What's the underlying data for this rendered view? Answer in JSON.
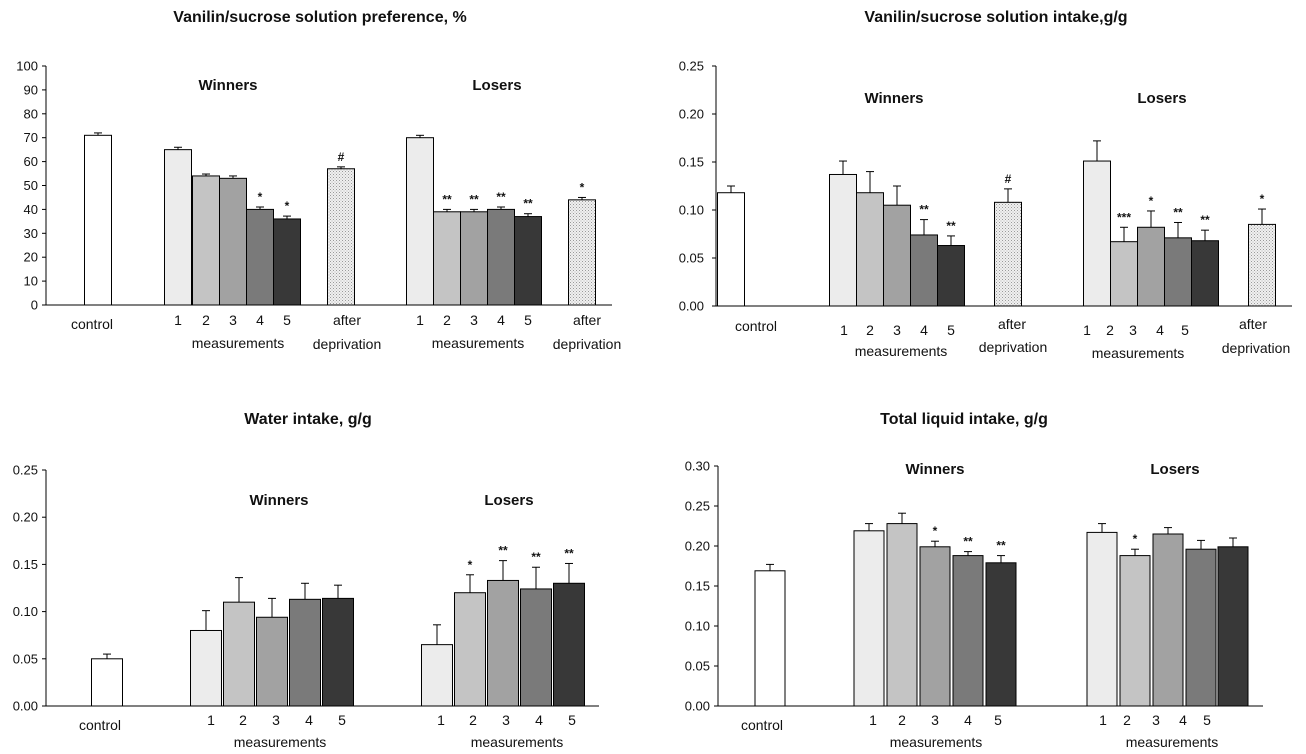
{
  "palette": {
    "control": "#ffffff",
    "m1": "#ececec",
    "m2": "#c4c4c4",
    "m3": "#a2a2a2",
    "m4": "#7a7a7a",
    "m5": "#383838",
    "deprivation": "#f0f0f0",
    "stroke": "#000000"
  },
  "chart_data": [
    {
      "type": "bar",
      "title": "Vanilin/sucrose solution preference, %",
      "ylim": [
        0,
        100
      ],
      "yticks": [
        "0",
        "10",
        "20",
        "30",
        "40",
        "50",
        "60",
        "70",
        "80",
        "90",
        "100"
      ],
      "group_labels": [
        "Winners",
        "Losers"
      ],
      "x_labels": [
        {
          "text": "control"
        },
        {
          "text": "1"
        },
        {
          "text": "2"
        },
        {
          "text": "3"
        },
        {
          "text": "4"
        },
        {
          "text": "5"
        },
        {
          "text": "measurements"
        },
        {
          "text": "after"
        },
        {
          "text": "deprivation"
        },
        {
          "text": "1"
        },
        {
          "text": "2"
        },
        {
          "text": "3"
        },
        {
          "text": "4"
        },
        {
          "text": "5"
        },
        {
          "text": "measurements"
        },
        {
          "text": "after"
        },
        {
          "text": "deprivation"
        }
      ],
      "bars": [
        {
          "group": "control",
          "label": "control",
          "value": 71,
          "error": 1,
          "fill": "control"
        },
        {
          "group": "Winners",
          "label": "1",
          "value": 65,
          "error": 1,
          "fill": "m1"
        },
        {
          "group": "Winners",
          "label": "2",
          "value": 54,
          "error": 0.8,
          "fill": "m2"
        },
        {
          "group": "Winners",
          "label": "3",
          "value": 53,
          "error": 1,
          "fill": "m3"
        },
        {
          "group": "Winners",
          "label": "4",
          "value": 40,
          "error": 1,
          "fill": "m4",
          "annotation": "*"
        },
        {
          "group": "Winners",
          "label": "5",
          "value": 36,
          "error": 1.2,
          "fill": "m5",
          "annotation": "*"
        },
        {
          "group": "Winners",
          "label": "after deprivation",
          "value": 57,
          "error": 0.8,
          "fill": "deprivation",
          "annotation": "#"
        },
        {
          "group": "Losers",
          "label": "1",
          "value": 70,
          "error": 1,
          "fill": "m1"
        },
        {
          "group": "Losers",
          "label": "2",
          "value": 39,
          "error": 1,
          "fill": "m2",
          "annotation": "**"
        },
        {
          "group": "Losers",
          "label": "3",
          "value": 39,
          "error": 1,
          "fill": "m3",
          "annotation": "**"
        },
        {
          "group": "Losers",
          "label": "4",
          "value": 40,
          "error": 1,
          "fill": "m4",
          "annotation": "**"
        },
        {
          "group": "Losers",
          "label": "5",
          "value": 37,
          "error": 1.2,
          "fill": "m5",
          "annotation": "**"
        },
        {
          "group": "Losers",
          "label": "after deprivation",
          "value": 44,
          "error": 1,
          "fill": "deprivation",
          "annotation": "*"
        }
      ]
    },
    {
      "type": "bar",
      "title": "Vanilin/sucrose solution intake,g/g",
      "ylim": [
        0,
        0.25
      ],
      "yticks": [
        "0.00",
        "0.05",
        "0.10",
        "0.15",
        "0.20",
        "0.25"
      ],
      "group_labels": [
        "Winners",
        "Losers"
      ],
      "x_labels": [
        {
          "text": "control"
        },
        {
          "text": "1"
        },
        {
          "text": "2"
        },
        {
          "text": "3"
        },
        {
          "text": "4"
        },
        {
          "text": "5"
        },
        {
          "text": "measurements"
        },
        {
          "text": "after"
        },
        {
          "text": "deprivation"
        },
        {
          "text": "1"
        },
        {
          "text": "2"
        },
        {
          "text": "3"
        },
        {
          "text": "4"
        },
        {
          "text": "5"
        },
        {
          "text": "measurements"
        },
        {
          "text": "after"
        },
        {
          "text": "deprivation"
        }
      ],
      "bars": [
        {
          "group": "control",
          "label": "control",
          "value": 0.118,
          "error": 0.007,
          "fill": "control"
        },
        {
          "group": "Winners",
          "label": "1",
          "value": 0.137,
          "error": 0.014,
          "fill": "m1"
        },
        {
          "group": "Winners",
          "label": "2",
          "value": 0.118,
          "error": 0.022,
          "fill": "m2"
        },
        {
          "group": "Winners",
          "label": "3",
          "value": 0.105,
          "error": 0.02,
          "fill": "m3"
        },
        {
          "group": "Winners",
          "label": "4",
          "value": 0.074,
          "error": 0.016,
          "fill": "m4",
          "annotation": "**"
        },
        {
          "group": "Winners",
          "label": "5",
          "value": 0.063,
          "error": 0.01,
          "fill": "m5",
          "annotation": "**"
        },
        {
          "group": "Winners",
          "label": "after deprivation",
          "value": 0.108,
          "error": 0.014,
          "fill": "deprivation",
          "annotation": "#"
        },
        {
          "group": "Losers",
          "label": "1",
          "value": 0.151,
          "error": 0.021,
          "fill": "m1"
        },
        {
          "group": "Losers",
          "label": "2",
          "value": 0.067,
          "error": 0.015,
          "fill": "m2",
          "annotation": "***"
        },
        {
          "group": "Losers",
          "label": "3",
          "value": 0.082,
          "error": 0.017,
          "fill": "m3",
          "annotation": "*"
        },
        {
          "group": "Losers",
          "label": "4",
          "value": 0.071,
          "error": 0.016,
          "fill": "m4",
          "annotation": "**"
        },
        {
          "group": "Losers",
          "label": "5",
          "value": 0.068,
          "error": 0.011,
          "fill": "m5",
          "annotation": "**"
        },
        {
          "group": "Losers",
          "label": "after deprivation",
          "value": 0.085,
          "error": 0.016,
          "fill": "deprivation",
          "annotation": "*"
        }
      ]
    },
    {
      "type": "bar",
      "title": "Water intake, g/g",
      "ylim": [
        0,
        0.25
      ],
      "yticks": [
        "0.00",
        "0.05",
        "0.10",
        "0.15",
        "0.20",
        "0.25"
      ],
      "group_labels": [
        "Winners",
        "Losers"
      ],
      "x_labels": [
        {
          "text": "control"
        },
        {
          "text": "1"
        },
        {
          "text": "2"
        },
        {
          "text": "3"
        },
        {
          "text": "4"
        },
        {
          "text": "5"
        },
        {
          "text": "measurements"
        },
        {
          "text": "1"
        },
        {
          "text": "2"
        },
        {
          "text": "3"
        },
        {
          "text": "4"
        },
        {
          "text": "5"
        },
        {
          "text": "measurements"
        }
      ],
      "bars": [
        {
          "group": "control",
          "label": "control",
          "value": 0.05,
          "error": 0.005,
          "fill": "control"
        },
        {
          "group": "Winners",
          "label": "1",
          "value": 0.08,
          "error": 0.021,
          "fill": "m1"
        },
        {
          "group": "Winners",
          "label": "2",
          "value": 0.11,
          "error": 0.026,
          "fill": "m2"
        },
        {
          "group": "Winners",
          "label": "3",
          "value": 0.094,
          "error": 0.02,
          "fill": "m3"
        },
        {
          "group": "Winners",
          "label": "4",
          "value": 0.113,
          "error": 0.017,
          "fill": "m4"
        },
        {
          "group": "Winners",
          "label": "5",
          "value": 0.114,
          "error": 0.014,
          "fill": "m5"
        },
        {
          "group": "Losers",
          "label": "1",
          "value": 0.065,
          "error": 0.021,
          "fill": "m1"
        },
        {
          "group": "Losers",
          "label": "2",
          "value": 0.12,
          "error": 0.019,
          "fill": "m2",
          "annotation": "*"
        },
        {
          "group": "Losers",
          "label": "3",
          "value": 0.133,
          "error": 0.021,
          "fill": "m3",
          "annotation": "**"
        },
        {
          "group": "Losers",
          "label": "4",
          "value": 0.124,
          "error": 0.023,
          "fill": "m4",
          "annotation": "**"
        },
        {
          "group": "Losers",
          "label": "5",
          "value": 0.13,
          "error": 0.021,
          "fill": "m5",
          "annotation": "**"
        }
      ]
    },
    {
      "type": "bar",
      "title": "Total liquid intake, g/g",
      "ylim": [
        0,
        0.3
      ],
      "yticks": [
        "0.00",
        "0.05",
        "0.10",
        "0.15",
        "0.20",
        "0.25",
        "0.30"
      ],
      "group_labels": [
        "Winners",
        "Losers"
      ],
      "x_labels": [
        {
          "text": "control"
        },
        {
          "text": "1"
        },
        {
          "text": "2"
        },
        {
          "text": "3"
        },
        {
          "text": "4"
        },
        {
          "text": "5"
        },
        {
          "text": "measurements"
        },
        {
          "text": "1"
        },
        {
          "text": "2"
        },
        {
          "text": "3"
        },
        {
          "text": "4"
        },
        {
          "text": "5"
        },
        {
          "text": "measurements"
        }
      ],
      "bars": [
        {
          "group": "control",
          "label": "control",
          "value": 0.169,
          "error": 0.008,
          "fill": "control"
        },
        {
          "group": "Winners",
          "label": "1",
          "value": 0.219,
          "error": 0.009,
          "fill": "m1"
        },
        {
          "group": "Winners",
          "label": "2",
          "value": 0.228,
          "error": 0.013,
          "fill": "m2"
        },
        {
          "group": "Winners",
          "label": "3",
          "value": 0.199,
          "error": 0.007,
          "fill": "m3",
          "annotation": "*"
        },
        {
          "group": "Winners",
          "label": "4",
          "value": 0.188,
          "error": 0.005,
          "fill": "m4",
          "annotation": "**"
        },
        {
          "group": "Winners",
          "label": "5",
          "value": 0.179,
          "error": 0.009,
          "fill": "m5",
          "annotation": "**"
        },
        {
          "group": "Losers",
          "label": "1",
          "value": 0.217,
          "error": 0.011,
          "fill": "m1"
        },
        {
          "group": "Losers",
          "label": "2",
          "value": 0.188,
          "error": 0.008,
          "fill": "m2",
          "annotation": "*"
        },
        {
          "group": "Losers",
          "label": "3",
          "value": 0.215,
          "error": 0.008,
          "fill": "m3"
        },
        {
          "group": "Losers",
          "label": "4",
          "value": 0.196,
          "error": 0.011,
          "fill": "m4"
        },
        {
          "group": "Losers",
          "label": "5",
          "value": 0.199,
          "error": 0.011,
          "fill": "m5"
        }
      ]
    }
  ]
}
